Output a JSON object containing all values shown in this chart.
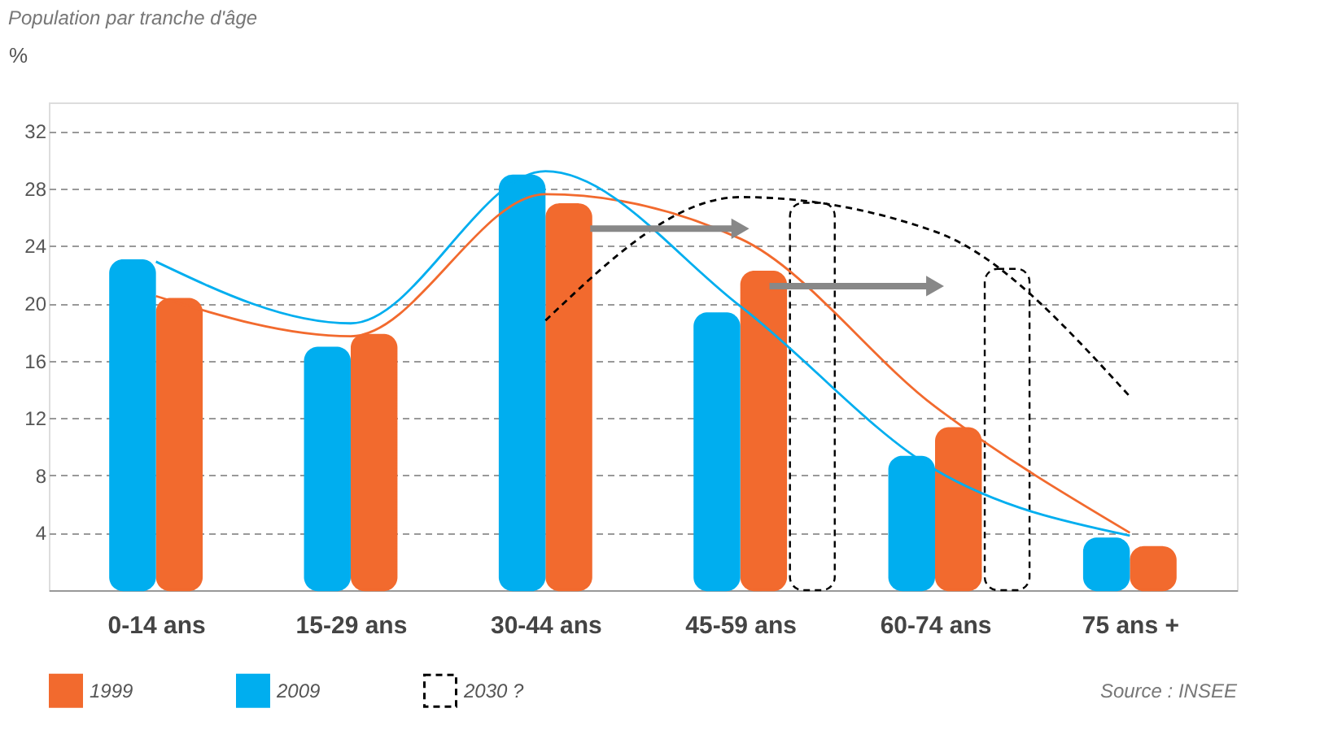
{
  "chart_data": {
    "type": "bar",
    "title": "Population par tranche d'âge",
    "ylabel": "%",
    "categories": [
      "0-14 ans",
      "15-29 ans",
      "30-44 ans",
      "45-59 ans",
      "60-74 ans",
      "75 ans +"
    ],
    "ylim": [
      0,
      34
    ],
    "yticks": [
      4,
      8,
      12,
      16,
      20,
      24,
      28,
      32
    ],
    "grid": "y",
    "legend": "bottom left",
    "series": [
      {
        "name": "1999",
        "color": "#f26a2e",
        "values": [
          20.3,
          17.8,
          26.9,
          22.2,
          11.3,
          3.0
        ]
      },
      {
        "name": "2009",
        "color": "#00aeef",
        "values": [
          23.0,
          16.9,
          28.9,
          19.3,
          9.3,
          3.6
        ]
      },
      {
        "name": "2030 ?",
        "color": "#000000",
        "line_style": "dashed",
        "values": [
          null,
          null,
          null,
          27.0,
          22.4,
          null
        ]
      },
      {
        "type": "line",
        "color": "#f26a2e",
        "values": [
          20.5,
          17.7,
          27.6,
          24.5,
          12.8,
          4.0
        ]
      },
      {
        "type": "line",
        "color": "#00aeef",
        "values": [
          22.9,
          18.6,
          29.2,
          19.8,
          8.4,
          3.8
        ]
      },
      {
        "type": "line",
        "color": "#000000",
        "line_style": "dashed",
        "values": [
          null,
          null,
          18.8,
          27.4,
          25.0,
          13.5
        ]
      }
    ],
    "annotations": [
      "Source : INSEE"
    ]
  }
}
